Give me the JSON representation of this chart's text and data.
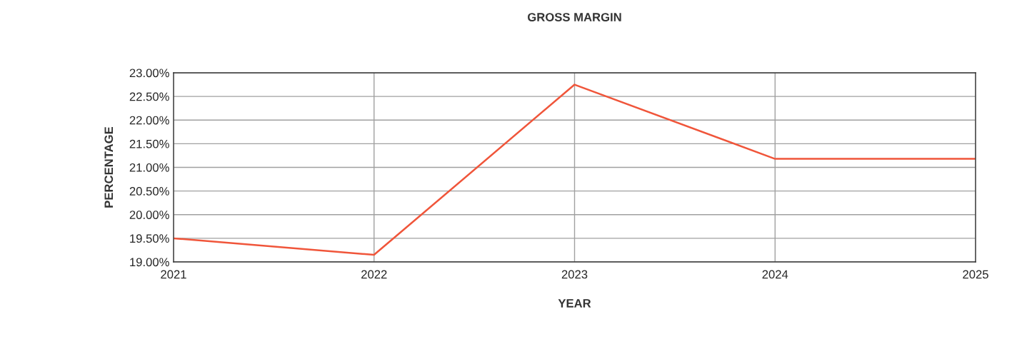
{
  "chart_data": {
    "type": "line",
    "title": "GROSS MARGIN",
    "xlabel": "YEAR",
    "ylabel": "PERCENTAGE",
    "x": [
      2021,
      2022,
      2023,
      2024,
      2025
    ],
    "series": [
      {
        "color": "#f0553a",
        "values": [
          19.5,
          19.15,
          22.75,
          21.18,
          21.18
        ]
      }
    ],
    "xlim": [
      2021,
      2025
    ],
    "xticks": [
      2021,
      2022,
      2023,
      2024,
      2025
    ],
    "ylim": [
      19,
      23
    ],
    "yticks": [
      {
        "value": 19,
        "label": "19.00%"
      },
      {
        "value": 19.5,
        "label": "19.50%"
      },
      {
        "value": 20,
        "label": "20.00%"
      },
      {
        "value": 20.5,
        "label": "20.50%"
      },
      {
        "value": 21,
        "label": "21.00%"
      },
      {
        "value": 21.5,
        "label": "21.50%"
      },
      {
        "value": 22,
        "label": "22.00%"
      },
      {
        "value": 22.5,
        "label": "22.50%"
      },
      {
        "value": 23,
        "label": "23.00%"
      }
    ],
    "grid": true,
    "marker": "none",
    "line_style": "solid"
  }
}
